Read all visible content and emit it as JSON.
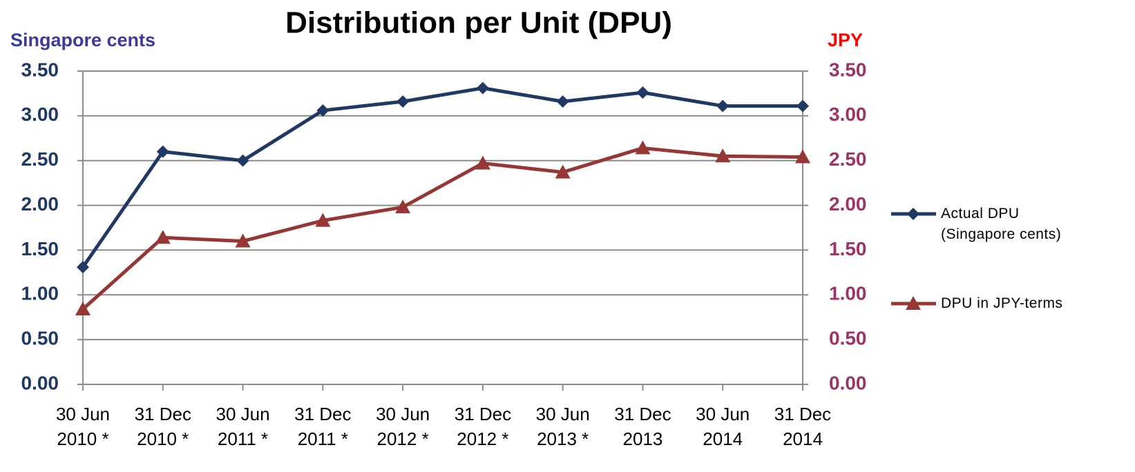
{
  "chart_data": {
    "type": "line",
    "title": "Distribution per Unit (DPU)",
    "y_label": "Singapore cents",
    "y2_label": "JPY",
    "categories": [
      [
        "30 Jun",
        "2010 *"
      ],
      [
        "31 Dec",
        "2010 *"
      ],
      [
        "30 Jun",
        "2011 *"
      ],
      [
        "31 Dec",
        "2011 *"
      ],
      [
        "30 Jun",
        "2012 *"
      ],
      [
        "31 Dec",
        "2012 *"
      ],
      [
        "30 Jun",
        "2013 *"
      ],
      [
        "31 Dec",
        "2013"
      ],
      [
        "30 Jun",
        "2014"
      ],
      [
        "31 Dec",
        "2014"
      ]
    ],
    "series": [
      {
        "name": "Actual DPU (Singapore cents)",
        "color": "#1f3864",
        "marker": "diamond",
        "values": [
          1.31,
          2.6,
          2.5,
          3.06,
          3.16,
          3.31,
          3.16,
          3.26,
          3.11,
          3.11
        ]
      },
      {
        "name": "DPU in JPY-terms",
        "color": "#953735",
        "marker": "triangle",
        "axis": "y2",
        "values": [
          0.84,
          1.64,
          1.6,
          1.83,
          1.98,
          2.47,
          2.37,
          2.64,
          2.55,
          2.54
        ]
      }
    ],
    "ylim": [
      0,
      3.5
    ],
    "yticks": [
      {
        "value": 0,
        "label": "0.00"
      },
      {
        "value": 0.5,
        "label": "0.50"
      },
      {
        "value": 1,
        "label": "1.00"
      },
      {
        "value": 1.5,
        "label": "1.50"
      },
      {
        "value": 2,
        "label": "2.00"
      },
      {
        "value": 2.5,
        "label": "2.50"
      },
      {
        "value": 3,
        "label": "3.00"
      },
      {
        "value": 3.5,
        "label": "3.50"
      }
    ],
    "y2lim": [
      0,
      3.5
    ],
    "y2ticks": [
      {
        "value": 0,
        "label": "0.00"
      },
      {
        "value": 0.5,
        "label": "0.50"
      },
      {
        "value": 1,
        "label": "1.00"
      },
      {
        "value": 1.5,
        "label": "1.50"
      },
      {
        "value": 2,
        "label": "2.00"
      },
      {
        "value": 2.5,
        "label": "2.50"
      },
      {
        "value": 3,
        "label": "3.00"
      },
      {
        "value": 3.5,
        "label": "3.50"
      }
    ],
    "grid": true,
    "legend": "right"
  }
}
